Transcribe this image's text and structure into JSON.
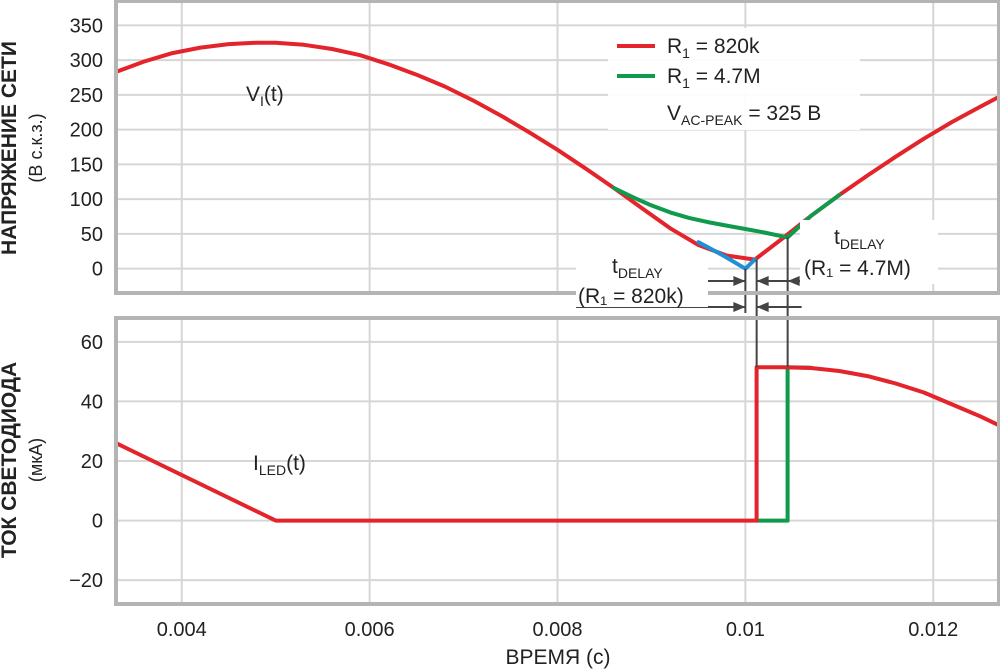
{
  "chart_data": [
    {
      "type": "line",
      "ylabel": "НАПРЯЖЕНИЕ СЕТИ",
      "ylabel_sub": "(В с.к.з.)",
      "xlim": [
        0.0033,
        0.0127
      ],
      "ylim": [
        -35,
        385
      ],
      "x_ticks": [
        0.004,
        0.006,
        0.008,
        0.01,
        0.012
      ],
      "y_ticks": [
        0,
        50,
        100,
        150,
        200,
        250,
        300,
        350
      ],
      "y_tick_labels": [
        "0",
        "50",
        "100",
        "150",
        "200",
        "250",
        "300",
        "350"
      ],
      "grid": true,
      "curve_label": {
        "main": "V",
        "sub": "I",
        "suffix": "(t)"
      },
      "legend": {
        "position": "top-right",
        "entries": [
          {
            "prefix": "R",
            "sub": "1",
            "suffix": " = 820k",
            "color": "#e3242b"
          },
          {
            "prefix": "R",
            "sub": "1",
            "suffix": " = 4.7M",
            "color": "#0f9a4c"
          }
        ],
        "note": {
          "prefix": "V",
          "sub": "AC-PEAK",
          "suffix": " = 325 В"
        }
      },
      "series": [
        {
          "name": "R1 = 820k",
          "color": "#e3242b",
          "x": [
            0.0033,
            0.0036,
            0.0039,
            0.0042,
            0.0045,
            0.0048,
            0.005,
            0.0053,
            0.0056,
            0.0059,
            0.0062,
            0.0065,
            0.0068,
            0.0071,
            0.0074,
            0.0077,
            0.008,
            0.0083,
            0.0086,
            0.0089,
            0.0092,
            0.0095,
            0.0098,
            0.0101,
            0.0104,
            0.0107,
            0.011,
            0.0113,
            0.0116,
            0.0119,
            0.0122,
            0.0125,
            0.0127
          ],
          "y": [
            283,
            298,
            310,
            318,
            323,
            325,
            325,
            322,
            316,
            307,
            294,
            279,
            262,
            242,
            220,
            196,
            171,
            144,
            116,
            87,
            58,
            34,
            19,
            13,
            44,
            76,
            106,
            134,
            161,
            187,
            211,
            233,
            247
          ]
        },
        {
          "name": "R1 = 4.7M",
          "color": "#0f9a4c",
          "x": [
            0.0086,
            0.0088,
            0.009,
            0.0092,
            0.0094,
            0.0096,
            0.0098,
            0.01,
            0.0102,
            0.01045,
            0.0107,
            0.011
          ],
          "y": [
            116,
            103,
            91,
            81,
            73,
            67,
            62,
            57,
            52,
            45,
            76,
            106
          ]
        },
        {
          "name": "",
          "color": "#1f8fd6",
          "x": [
            0.0095,
            0.00975,
            0.01,
            0.0101
          ],
          "y": [
            38,
            20,
            0,
            13
          ]
        }
      ],
      "annotations": [
        {
          "prefix": "t",
          "sub": "DELAY",
          "line2": "(R₁ = 820k)",
          "x_interval": [
            0.01,
            0.01012
          ]
        },
        {
          "prefix": "t",
          "sub": "DELAY",
          "line2": "(R₁ = 4.7M)",
          "x_interval": [
            0.01,
            0.01045
          ]
        }
      ]
    },
    {
      "type": "line",
      "ylabel": "ТОК СВЕТОДИОДА",
      "ylabel_sub": "(мкА)",
      "xlabel": "ВРЕМЯ (с)",
      "xlim": [
        0.0033,
        0.0127
      ],
      "ylim": [
        -28,
        68
      ],
      "x_ticks": [
        0.004,
        0.006,
        0.008,
        0.01,
        0.012
      ],
      "x_tick_labels": [
        "0.004",
        "0.006",
        "0.008",
        "0.01",
        "0.012"
      ],
      "y_ticks": [
        -20,
        0,
        20,
        40,
        60
      ],
      "y_tick_labels": [
        "−20",
        "0",
        "20",
        "40",
        "60"
      ],
      "grid": true,
      "curve_label": {
        "main": "I",
        "sub": "LED",
        "suffix": "(t)"
      },
      "series": [
        {
          "name": "R1 = 4.7M",
          "color": "#0f9a4c",
          "x": [
            0.01012,
            0.01045,
            0.01045,
            0.0107
          ],
          "y": [
            0,
            0,
            51.5,
            51.3
          ]
        },
        {
          "name": "R1 = 820k",
          "color": "#e3242b",
          "x": [
            0.0033,
            0.005,
            0.01012,
            0.01012,
            0.0104,
            0.0107,
            0.011,
            0.0113,
            0.0116,
            0.0119,
            0.0122,
            0.0125,
            0.0127
          ],
          "y": [
            26,
            0,
            0,
            51.5,
            51.5,
            51.2,
            50.2,
            48.5,
            46,
            43,
            39,
            35,
            32
          ]
        }
      ]
    }
  ]
}
